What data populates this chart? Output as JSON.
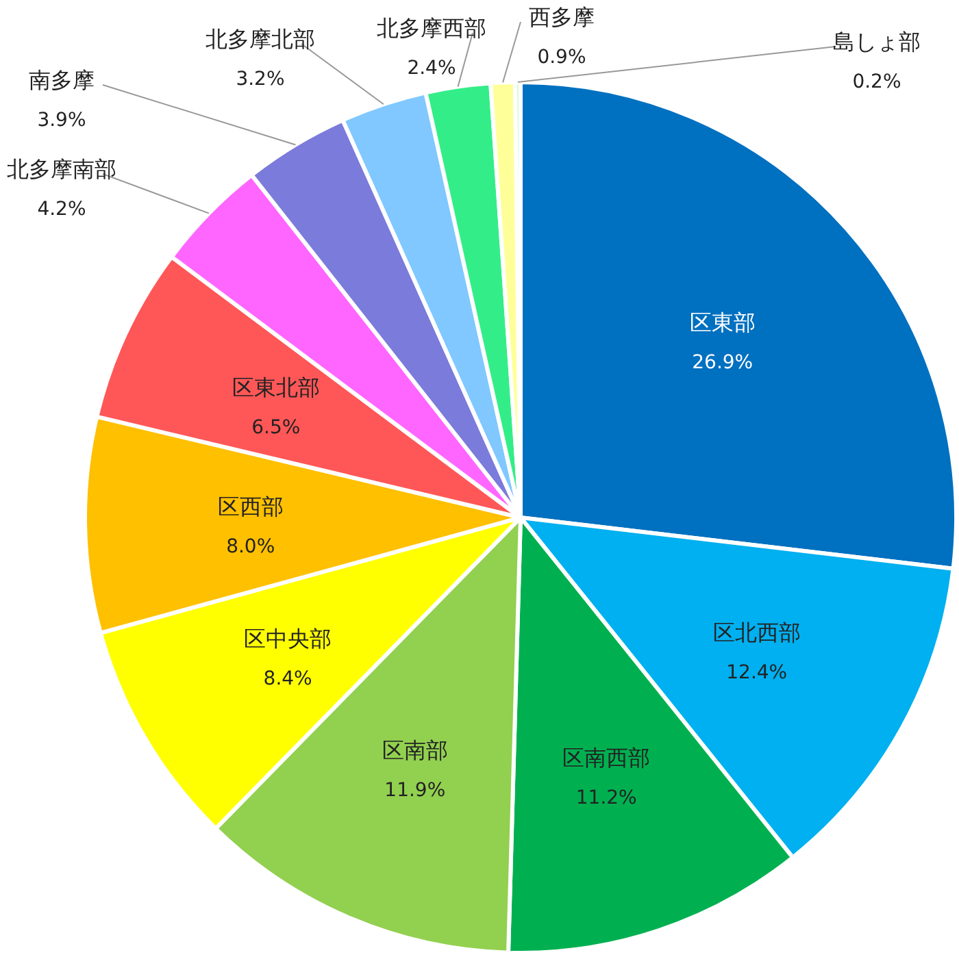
{
  "chart_data": {
    "type": "pie",
    "categories": [
      "区東部",
      "区北西部",
      "区南西部",
      "区南部",
      "区中央部",
      "区西部",
      "区東北部",
      "北多摩南部",
      "南多摩",
      "北多摩北部",
      "北多摩西部",
      "西多摩",
      "島しょ部"
    ],
    "values": [
      26.9,
      12.4,
      11.2,
      11.9,
      8.4,
      8.0,
      6.5,
      4.2,
      3.9,
      3.2,
      2.4,
      0.9,
      0.2
    ],
    "colors": [
      "#0070c0",
      "#00b0f0",
      "#00b050",
      "#92d050",
      "#ffff00",
      "#ffc000",
      "#ff5757",
      "#ff66ff",
      "#7b7bdb",
      "#80c8ff",
      "#33ee88",
      "#ffff99",
      "#ccffcc"
    ],
    "value_labels": [
      "26.9%",
      "12.4%",
      "11.2%",
      "11.9%",
      "8.4%",
      "8.0%",
      "6.5%",
      "4.2%",
      "3.9%",
      "3.2%",
      "2.4%",
      "0.9%",
      "0.2%"
    ]
  }
}
